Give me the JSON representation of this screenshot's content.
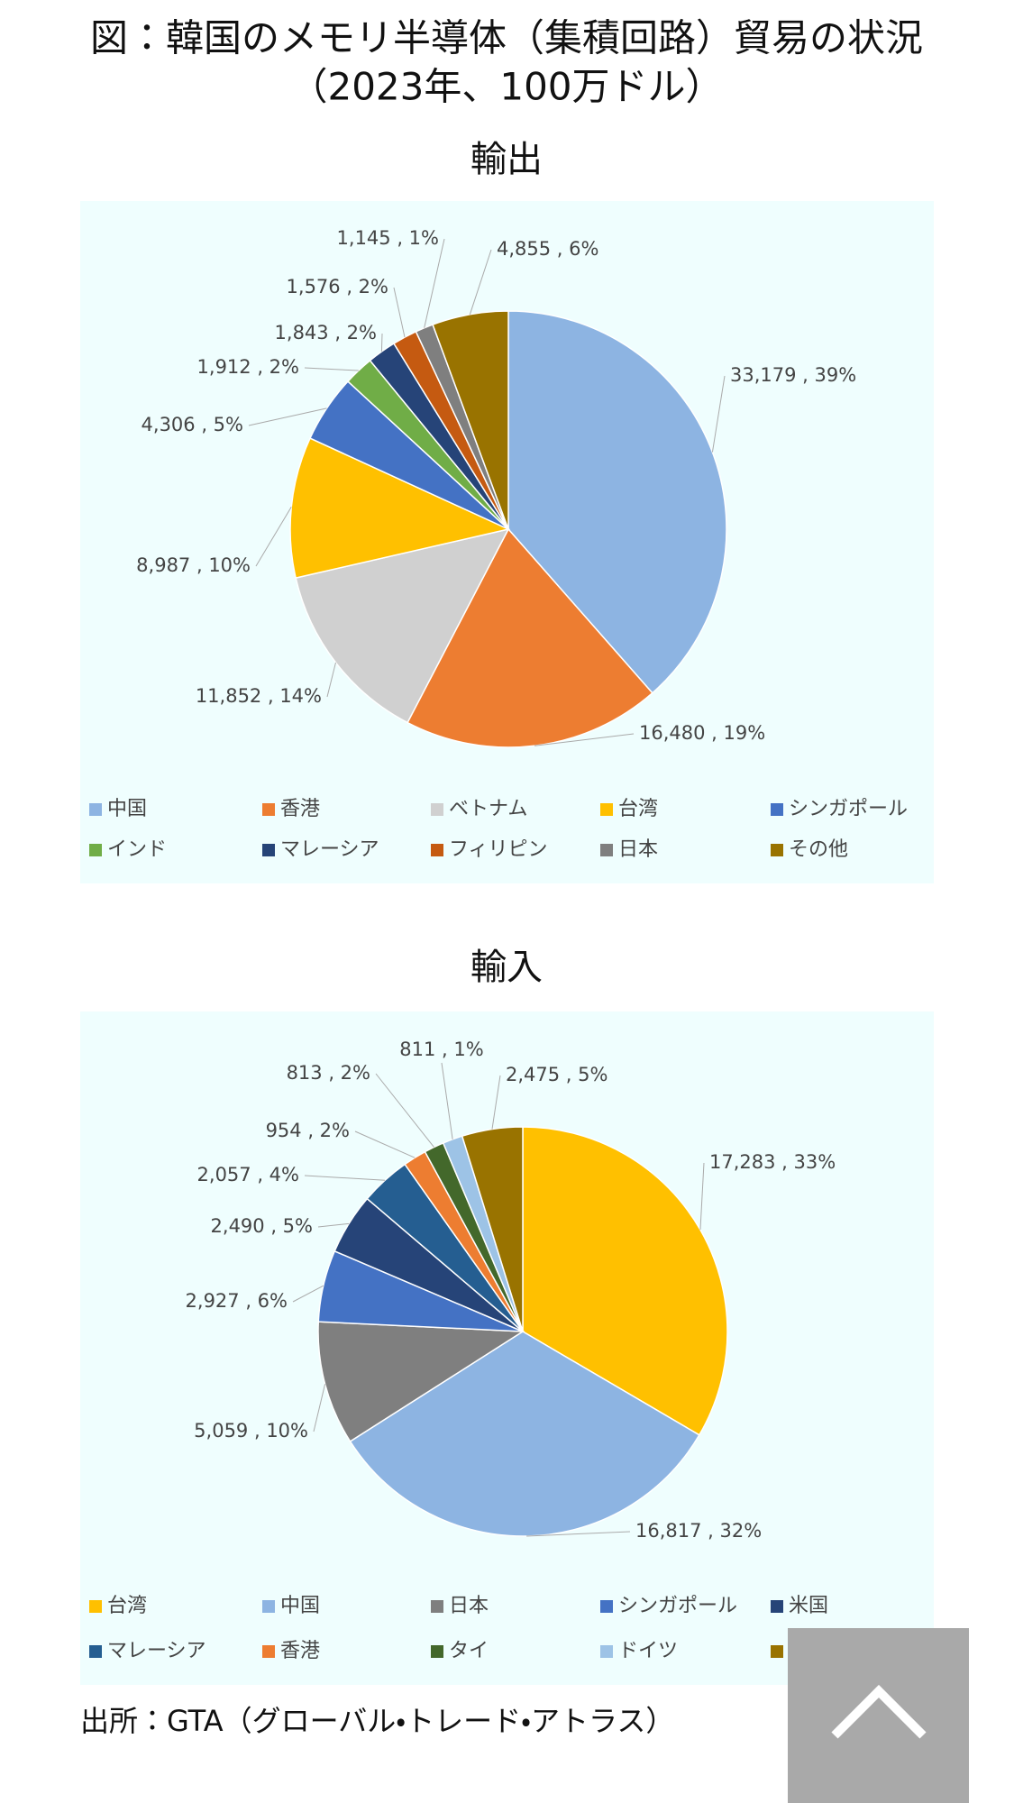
{
  "title": "図：韓国のメモリ半導体（集積回路）貿易の状況",
  "subtitle": "（2023年、100万ドル）",
  "source": "出所：GTA（グローバル・トレード・アトラス）",
  "chart_data": [
    {
      "type": "pie",
      "title": "輸出",
      "categories": [
        "中国",
        "香港",
        "ベトナム",
        "台湾",
        "シンガポール",
        "インド",
        "マレーシア",
        "フィリピン",
        "日本",
        "その他"
      ],
      "values": [
        33179,
        16480,
        11852,
        8987,
        4306,
        1912,
        1843,
        1576,
        1145,
        4855
      ],
      "value_labels": [
        "33,179 , 39%",
        "16,480 , 19%",
        "11,852 , 14%",
        "8,987 , 10%",
        "4,306 , 5%",
        "1,912 , 2%",
        "1,843 , 2%",
        "1,576 , 2%",
        "1,145 , 1%",
        "4,855 , 6%"
      ],
      "colors": [
        "#8db4e2",
        "#ed7d31",
        "#d0d0d0",
        "#ffc000",
        "#4472c4",
        "#70ad47",
        "#264478",
        "#c55a11",
        "#7f7f7f",
        "#997300"
      ]
    },
    {
      "type": "pie",
      "title": "輸入",
      "categories": [
        "台湾",
        "中国",
        "日本",
        "シンガポール",
        "米国",
        "マレーシア",
        "香港",
        "タイ",
        "ドイツ",
        null
      ],
      "values": [
        17283,
        16817,
        5059,
        2927,
        2490,
        2057,
        954,
        813,
        811,
        2475
      ],
      "value_labels": [
        "17,283 , 33%",
        "16,817 , 32%",
        "5,059 , 10%",
        "2,927 , 6%",
        "2,490 , 5%",
        "2,057 , 4%",
        "954 , 2%",
        "813 , 2%",
        "811 , 1%",
        "2,475 , 5%"
      ],
      "colors": [
        "#ffc000",
        "#8db4e2",
        "#7f7f7f",
        "#4472c4",
        "#264478",
        "#255e91",
        "#ed7d31",
        "#43682b",
        "#9dc3e6",
        "#997300"
      ]
    }
  ]
}
